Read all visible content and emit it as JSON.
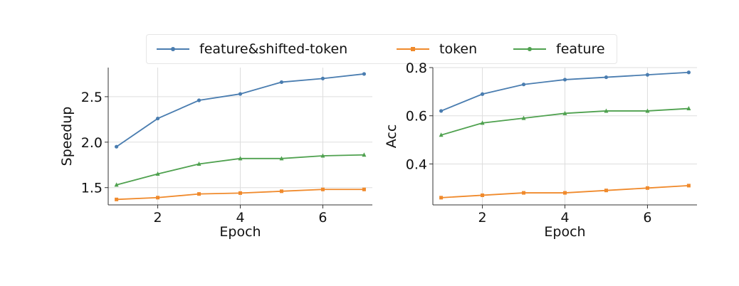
{
  "legend": {
    "items": [
      {
        "label": "feature&shifted-token",
        "color": "#4a7db0",
        "marker": "circle"
      },
      {
        "label": "token",
        "color": "#f08a2c",
        "marker": "square"
      },
      {
        "label": "feature",
        "color": "#4fa14f",
        "marker": "triangle"
      }
    ]
  },
  "chart_data": [
    {
      "type": "line",
      "xlabel": "Epoch",
      "ylabel": "Speedup",
      "xlim": [
        0.8,
        7.2
      ],
      "ylim": [
        1.31,
        2.82
      ],
      "xticks": [
        2,
        4,
        6
      ],
      "yticks": [
        1.5,
        2.0,
        2.5
      ],
      "ytick_labels": [
        "1.5",
        "2.0",
        "2.5"
      ],
      "grid": true,
      "x": [
        1,
        2,
        3,
        4,
        5,
        6,
        7
      ],
      "series": [
        {
          "name": "feature&shifted-token",
          "color": "#4a7db0",
          "marker": "circle",
          "values": [
            1.95,
            2.26,
            2.46,
            2.53,
            2.66,
            2.7,
            2.75
          ]
        },
        {
          "name": "token",
          "color": "#f08a2c",
          "marker": "square",
          "values": [
            1.37,
            1.39,
            1.43,
            1.44,
            1.46,
            1.48,
            1.48
          ]
        },
        {
          "name": "feature",
          "color": "#4fa14f",
          "marker": "triangle",
          "values": [
            1.53,
            1.65,
            1.76,
            1.82,
            1.82,
            1.85,
            1.86
          ]
        }
      ]
    },
    {
      "type": "line",
      "xlabel": "Epoch",
      "ylabel": "Acc",
      "xlim": [
        0.8,
        7.2
      ],
      "ylim": [
        0.23,
        0.8
      ],
      "xticks": [
        2,
        4,
        6
      ],
      "yticks": [
        0.4,
        0.6,
        0.8
      ],
      "ytick_labels": [
        "0.4",
        "0.6",
        "0.8"
      ],
      "grid": true,
      "x": [
        1,
        2,
        3,
        4,
        5,
        6,
        7
      ],
      "series": [
        {
          "name": "feature&shifted-token",
          "color": "#4a7db0",
          "marker": "circle",
          "values": [
            0.62,
            0.69,
            0.73,
            0.75,
            0.76,
            0.77,
            0.78
          ]
        },
        {
          "name": "token",
          "color": "#f08a2c",
          "marker": "square",
          "values": [
            0.26,
            0.27,
            0.28,
            0.28,
            0.29,
            0.3,
            0.31
          ]
        },
        {
          "name": "feature",
          "color": "#4fa14f",
          "marker": "triangle",
          "values": [
            0.52,
            0.57,
            0.59,
            0.61,
            0.62,
            0.62,
            0.63
          ]
        }
      ]
    }
  ]
}
